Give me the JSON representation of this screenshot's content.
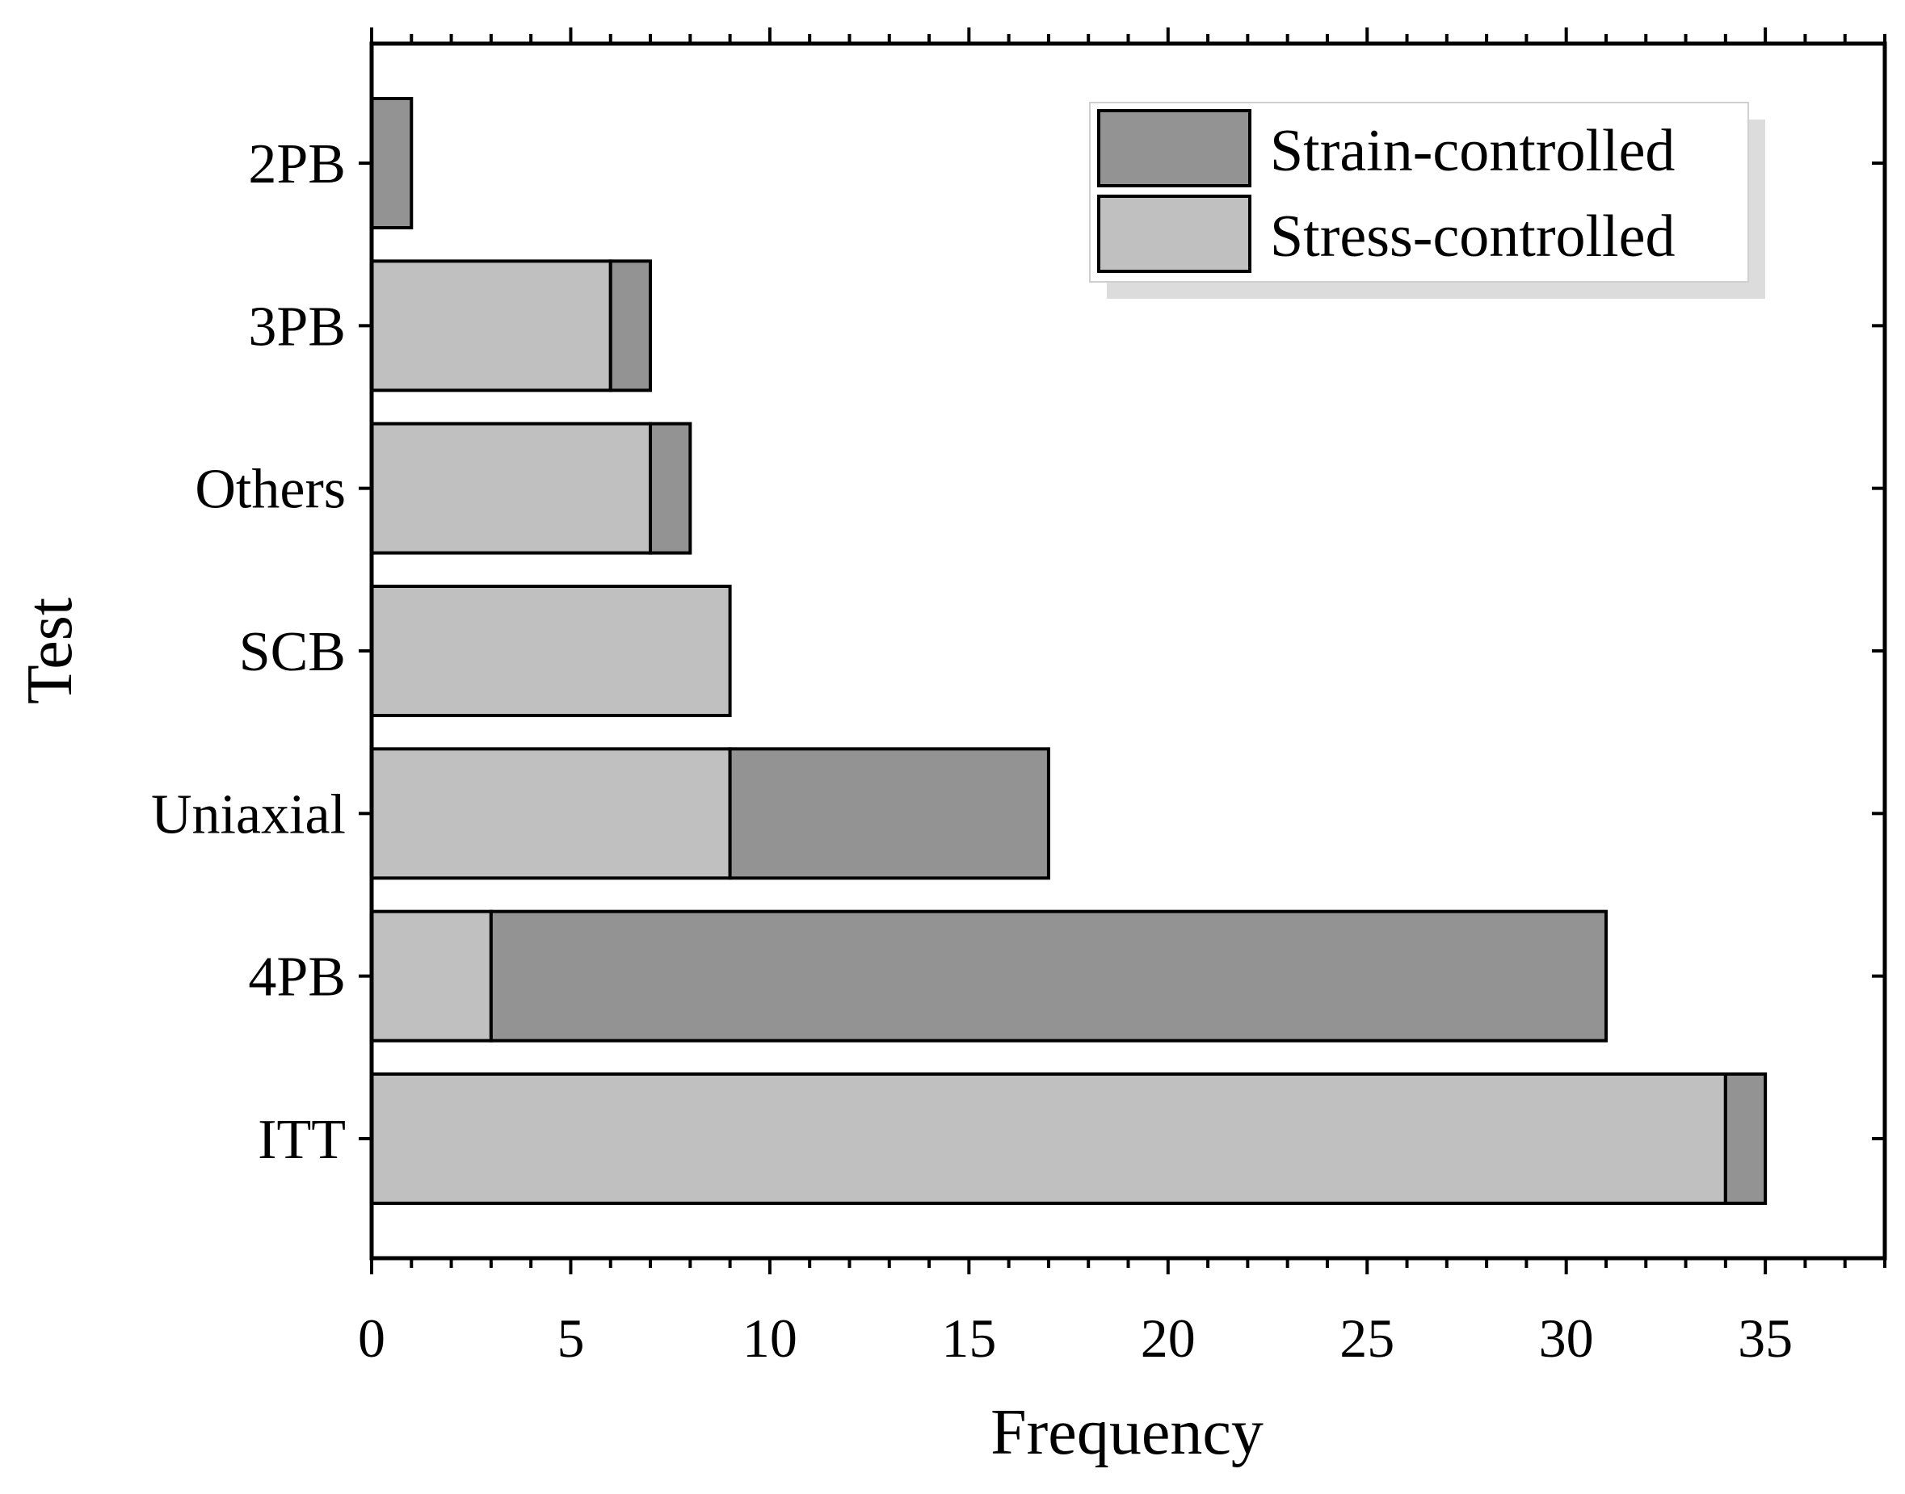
{
  "chart_data": {
    "type": "bar",
    "orientation": "horizontal",
    "stacked": true,
    "title": "",
    "xlabel": "Frequency",
    "ylabel": "Test",
    "xlim": [
      0,
      38
    ],
    "xticks": [
      0,
      5,
      10,
      15,
      20,
      25,
      30,
      35
    ],
    "categories": [
      "2PB",
      "3PB",
      "Others",
      "SCB",
      "Uniaxial",
      "4PB",
      "ITT"
    ],
    "series": [
      {
        "name": "Stress-controlled",
        "color": "#c0c0c0",
        "values": [
          0,
          6,
          7,
          9,
          9,
          3,
          34
        ]
      },
      {
        "name": "Strain-controlled",
        "color": "#939393",
        "values": [
          1,
          1,
          1,
          0,
          8,
          28,
          1
        ]
      }
    ],
    "legend": {
      "position": "top-right",
      "entries": [
        "Strain-controlled",
        "Stress-controlled"
      ]
    },
    "grid": false
  }
}
